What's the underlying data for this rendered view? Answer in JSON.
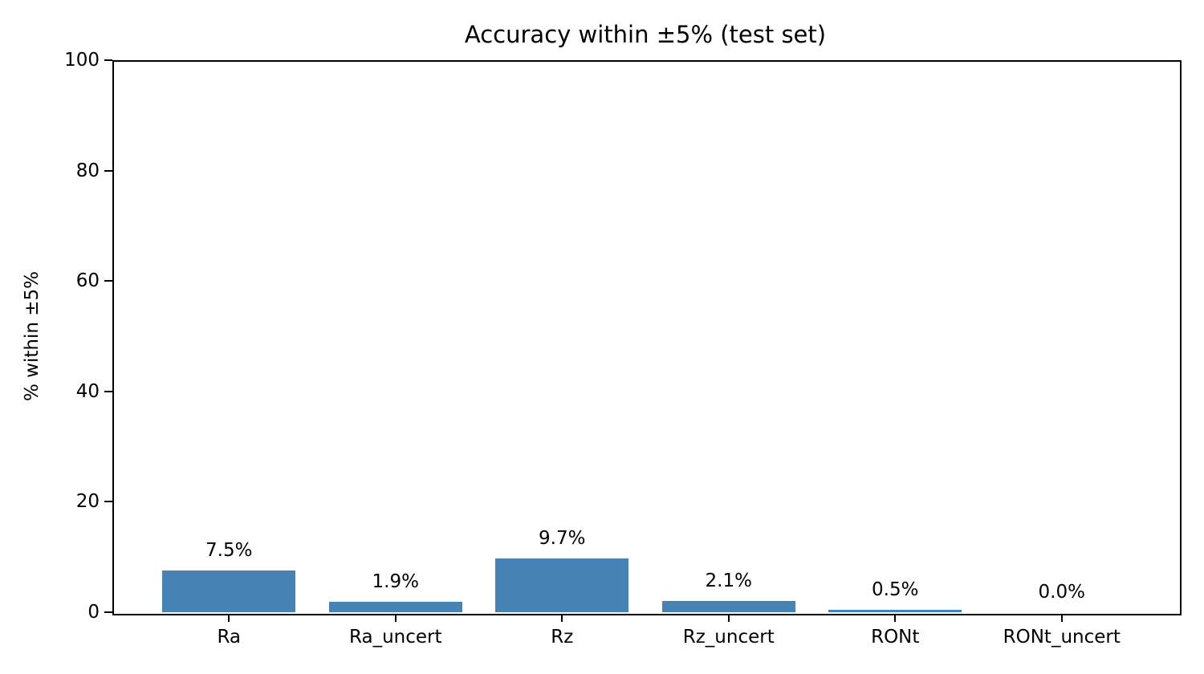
{
  "chart_data": {
    "type": "bar",
    "title": "Accuracy within ±5% (test set)",
    "ylabel": "% within ±5%",
    "xlabel": "",
    "categories": [
      "Ra",
      "Ra_uncert",
      "Rz",
      "Rz_uncert",
      "RONt",
      "RONt_uncert"
    ],
    "values": [
      7.5,
      1.9,
      9.7,
      2.1,
      0.5,
      0.0
    ],
    "value_labels": [
      "7.5%",
      "1.9%",
      "9.7%",
      "2.1%",
      "0.5%",
      "0.0%"
    ],
    "ylim": [
      0,
      100
    ],
    "yticks": [
      0,
      20,
      40,
      60,
      80,
      100
    ],
    "bar_color": "#4682B4",
    "bar_width_fraction": 0.8,
    "grid": false,
    "legend_position": "none",
    "text_color": "#000000"
  }
}
